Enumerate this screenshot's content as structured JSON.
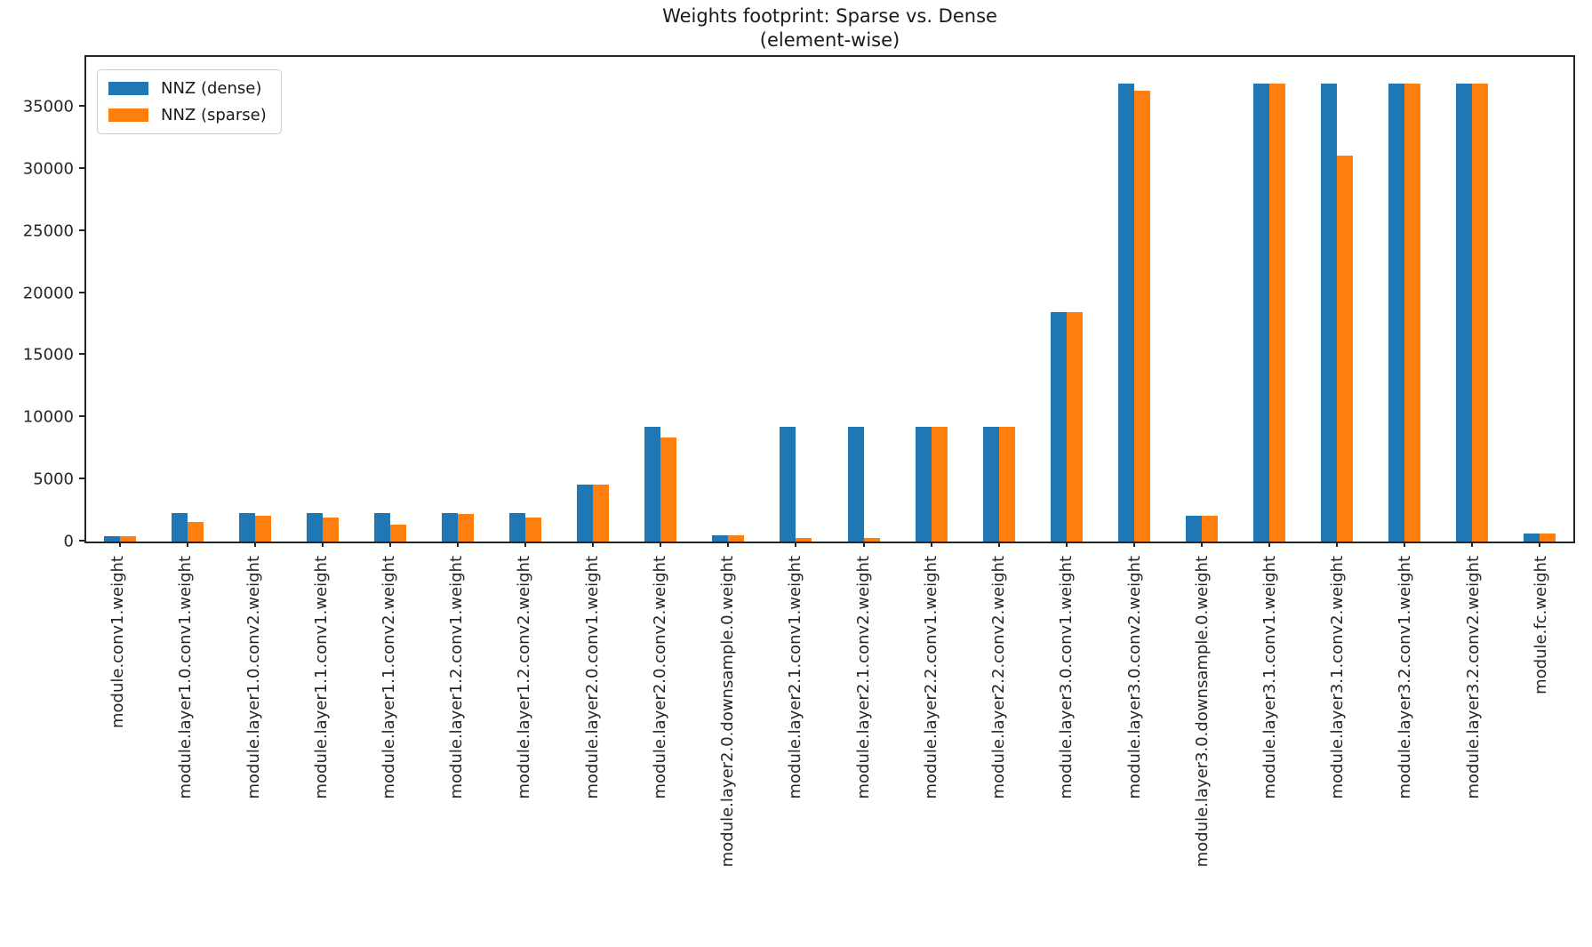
{
  "title": {
    "line1": "Weights footprint: Sparse vs. Dense",
    "line2": "(element-wise)"
  },
  "colors": {
    "dense": "#1f77b4",
    "sparse": "#ff7f0e",
    "spine": "#262626",
    "text": "#262626"
  },
  "chart_data": {
    "type": "bar",
    "title": "Weights footprint: Sparse vs. Dense (element-wise)",
    "xlabel": "",
    "ylabel": "",
    "grid": false,
    "legend_position": "upper-left",
    "ylim": [
      0,
      39000
    ],
    "yticks": [
      0,
      5000,
      10000,
      15000,
      20000,
      25000,
      30000,
      35000
    ],
    "categories": [
      "module.conv1.weight",
      "module.layer1.0.conv1.weight",
      "module.layer1.0.conv2.weight",
      "module.layer1.1.conv1.weight",
      "module.layer1.1.conv2.weight",
      "module.layer1.2.conv1.weight",
      "module.layer1.2.conv2.weight",
      "module.layer2.0.conv1.weight",
      "module.layer2.0.conv2.weight",
      "module.layer2.0.downsample.0.weight",
      "module.layer2.1.conv1.weight",
      "module.layer2.1.conv2.weight",
      "module.layer2.2.conv1.weight",
      "module.layer2.2.conv2.weight",
      "module.layer3.0.conv1.weight",
      "module.layer3.0.conv2.weight",
      "module.layer3.0.downsample.0.weight",
      "module.layer3.1.conv1.weight",
      "module.layer3.1.conv2.weight",
      "module.layer3.2.conv1.weight",
      "module.layer3.2.conv2.weight",
      "module.fc.weight"
    ],
    "series": [
      {
        "name": "NNZ (dense)",
        "color": "#1f77b4",
        "values": [
          432,
          2304,
          2304,
          2304,
          2304,
          2304,
          2304,
          4608,
          9216,
          512,
          9216,
          9216,
          9216,
          9216,
          18432,
          36864,
          2048,
          36864,
          36864,
          36864,
          36864,
          640
        ]
      },
      {
        "name": "NNZ (sparse)",
        "color": "#ff7f0e",
        "values": [
          432,
          1600,
          2050,
          1900,
          1330,
          2200,
          1900,
          4608,
          8400,
          512,
          300,
          300,
          9216,
          9216,
          18432,
          36300,
          2048,
          36864,
          31050,
          36864,
          36864,
          640
        ]
      }
    ]
  }
}
